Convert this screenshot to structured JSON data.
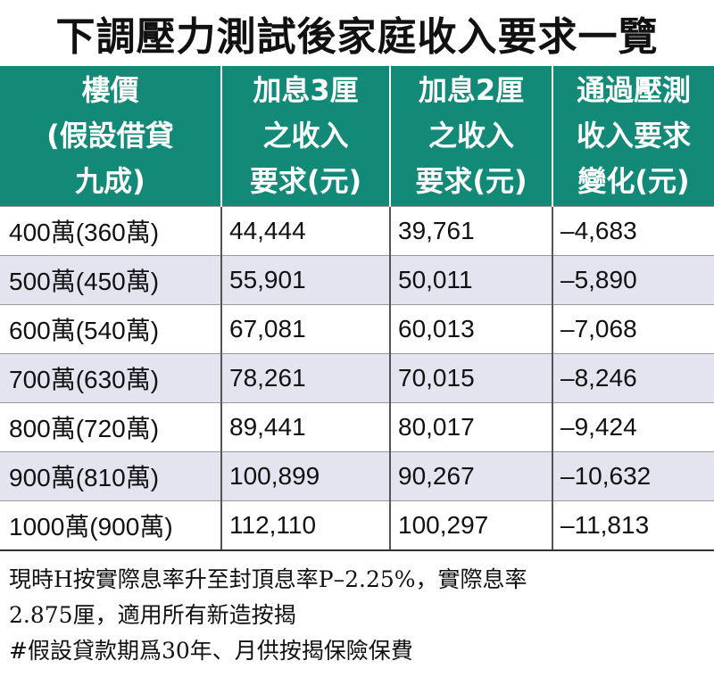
{
  "title": "下調壓力測試後家庭收入要求一覽",
  "table": {
    "headers": [
      [
        "樓價",
        "(假設借貸",
        "九成)"
      ],
      [
        "加息3厘",
        "之收入",
        "要求(元)"
      ],
      [
        "加息2厘",
        "之收入",
        "要求(元)"
      ],
      [
        "通過壓測",
        "收入要求",
        "變化(元)"
      ]
    ],
    "rows": [
      [
        "400萬(360萬)",
        "44,444",
        "39,761",
        "–4,683"
      ],
      [
        "500萬(450萬)",
        "55,901",
        "50,011",
        "–5,890"
      ],
      [
        "600萬(540萬)",
        "67,081",
        "60,013",
        "–7,068"
      ],
      [
        "700萬(630萬)",
        "78,261",
        "70,015",
        "–8,246"
      ],
      [
        "800萬(720萬)",
        "89,441",
        "80,017",
        "–9,424"
      ],
      [
        "900萬(810萬)",
        "100,899",
        "90,267",
        "–10,632"
      ],
      [
        "1000萬(900萬)",
        "112,110",
        "100,297",
        "–11,813"
      ]
    ]
  },
  "notes": [
    "現時H按實際息率升至封頂息率P–2.25%，實際息率",
    "2.875厘，適用所有新造按揭",
    "#假設貸款期爲30年、月供按揭保險保費"
  ],
  "colors": {
    "header_bg": "#138a78",
    "header_text": "#ffffff",
    "stripe_bg": "#e3e4f0"
  }
}
